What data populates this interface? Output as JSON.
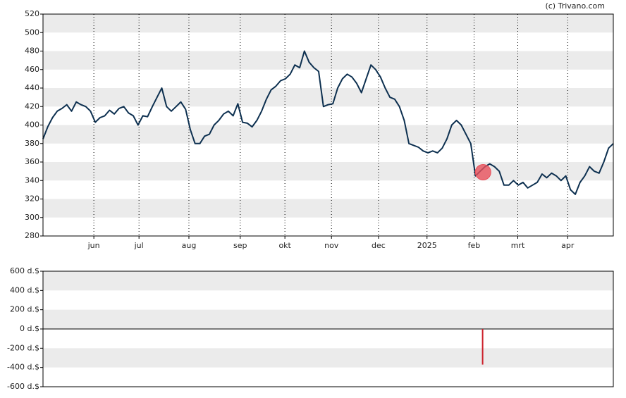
{
  "chart_data": [
    {
      "type": "line",
      "source": "(c) Trivano.com",
      "color": "#0d3050",
      "bands": true,
      "values": [
        385,
        398,
        408,
        415,
        418,
        422,
        415,
        425,
        422,
        420,
        415,
        403,
        408,
        410,
        416,
        412,
        418,
        420,
        413,
        410,
        400,
        410,
        409,
        420,
        430,
        440,
        420,
        415,
        420,
        425,
        417,
        395,
        380,
        380,
        388,
        390,
        400,
        405,
        412,
        415,
        410,
        423,
        403,
        402,
        398,
        405,
        415,
        428,
        438,
        442,
        448,
        450,
        455,
        465,
        462,
        480,
        468,
        462,
        458,
        420,
        422,
        423,
        440,
        450,
        455,
        452,
        445,
        435,
        450,
        465,
        460,
        452,
        440,
        430,
        428,
        420,
        405,
        380,
        378,
        376,
        372,
        370,
        372,
        370,
        375,
        385,
        400,
        405,
        400,
        390,
        380,
        345,
        350,
        355,
        358,
        355,
        350,
        335,
        335,
        340,
        335,
        338,
        332,
        335,
        338,
        347,
        343,
        348,
        345,
        340,
        345,
        330,
        325,
        338,
        345,
        355,
        350,
        348,
        360,
        375,
        380
      ],
      "markers": [
        {
          "x": 92.6,
          "value": 349,
          "color": "#e8505b"
        }
      ],
      "xlim": [
        0,
        120
      ],
      "xticks": [
        {
          "value": 10.7,
          "label": "jun"
        },
        {
          "value": 20.2,
          "label": "jul"
        },
        {
          "value": 30.7,
          "label": "aug"
        },
        {
          "value": 41.5,
          "label": "sep"
        },
        {
          "value": 50.9,
          "label": "okt"
        },
        {
          "value": 60.7,
          "label": "nov"
        },
        {
          "value": 70.6,
          "label": "dec"
        },
        {
          "value": 80.8,
          "label": "2025"
        },
        {
          "value": 90.7,
          "label": "feb"
        },
        {
          "value": 99.9,
          "label": "mrt"
        },
        {
          "value": 110.4,
          "label": "apr"
        }
      ],
      "ylim": [
        280,
        520
      ],
      "yticks": [
        280,
        300,
        320,
        340,
        360,
        380,
        400,
        420,
        440,
        460,
        480,
        500,
        520
      ]
    },
    {
      "type": "bar",
      "color": "#cc1f2a",
      "bands": true,
      "x": [
        92.5
      ],
      "values": [
        -370
      ],
      "xlim": [
        0,
        120
      ],
      "ylim": [
        -600,
        600
      ],
      "yticks": [
        {
          "value": -600,
          "label": "-600 d.$"
        },
        {
          "value": -400,
          "label": "-400 d.$"
        },
        {
          "value": -200,
          "label": "-200 d.$"
        },
        {
          "value": 0,
          "label": "0 d.$"
        },
        {
          "value": 200,
          "label": "200 d.$"
        },
        {
          "value": 400,
          "label": "400 d.$"
        },
        {
          "value": 600,
          "label": "600 d.$"
        }
      ]
    }
  ]
}
